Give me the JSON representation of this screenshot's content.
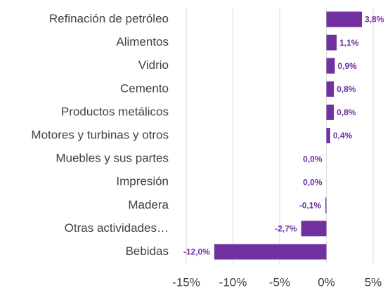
{
  "chart_data": {
    "type": "bar",
    "orientation": "horizontal",
    "categories": [
      "Refinación de petróleo",
      "Alimentos",
      "Vidrio",
      "Cemento",
      "Productos metálicos",
      "Motores y turbinas y otros",
      "Muebles y sus partes",
      "Impresión",
      "Madera",
      "Otras actividades…",
      "Bebidas"
    ],
    "values": [
      3.8,
      1.1,
      0.9,
      0.8,
      0.8,
      0.4,
      0.0,
      0.0,
      -0.1,
      -2.7,
      -12.0
    ],
    "value_labels": [
      "3,8%",
      "1,1%",
      "0,9%",
      "0,8%",
      "0,8%",
      "0,4%",
      "0,0%",
      "0,0%",
      "-0,1%",
      "-2,7%",
      "-12,0%"
    ],
    "color": "#7030a0",
    "xlim": [
      -15,
      5
    ],
    "xticks": [
      {
        "value": -15,
        "label": "-15%"
      },
      {
        "value": -10,
        "label": "-10%"
      },
      {
        "value": -5,
        "label": "-5%"
      },
      {
        "value": 0,
        "label": "0%"
      },
      {
        "value": 5,
        "label": "5%"
      }
    ],
    "grid": true
  }
}
